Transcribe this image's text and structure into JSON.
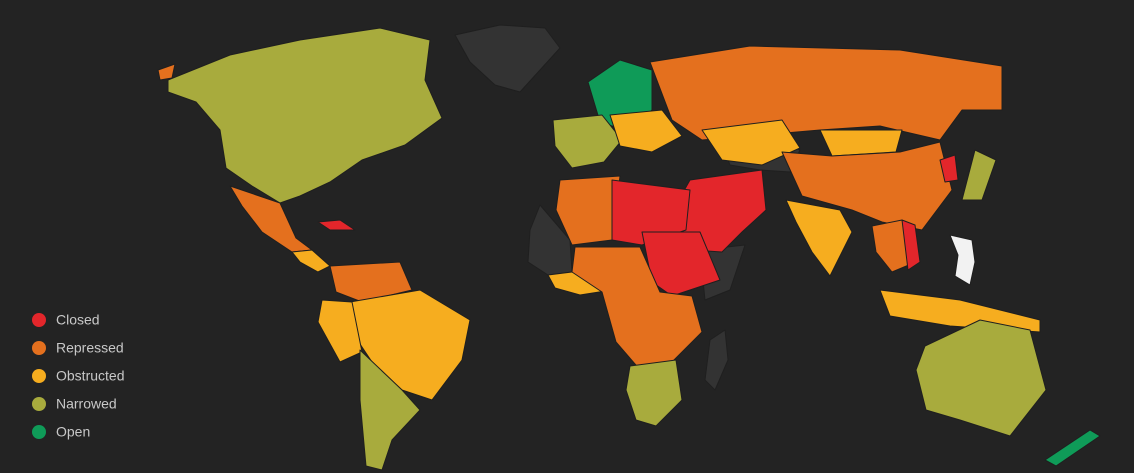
{
  "legend": {
    "items": [
      {
        "label": "Closed",
        "color": "#e3262b"
      },
      {
        "label": "Repressed",
        "color": "#e4701e"
      },
      {
        "label": "Obstructed",
        "color": "#f6ad1f"
      },
      {
        "label": "Narrowed",
        "color": "#a8ab3d"
      },
      {
        "label": "Open",
        "color": "#0f9b58"
      }
    ]
  }
}
